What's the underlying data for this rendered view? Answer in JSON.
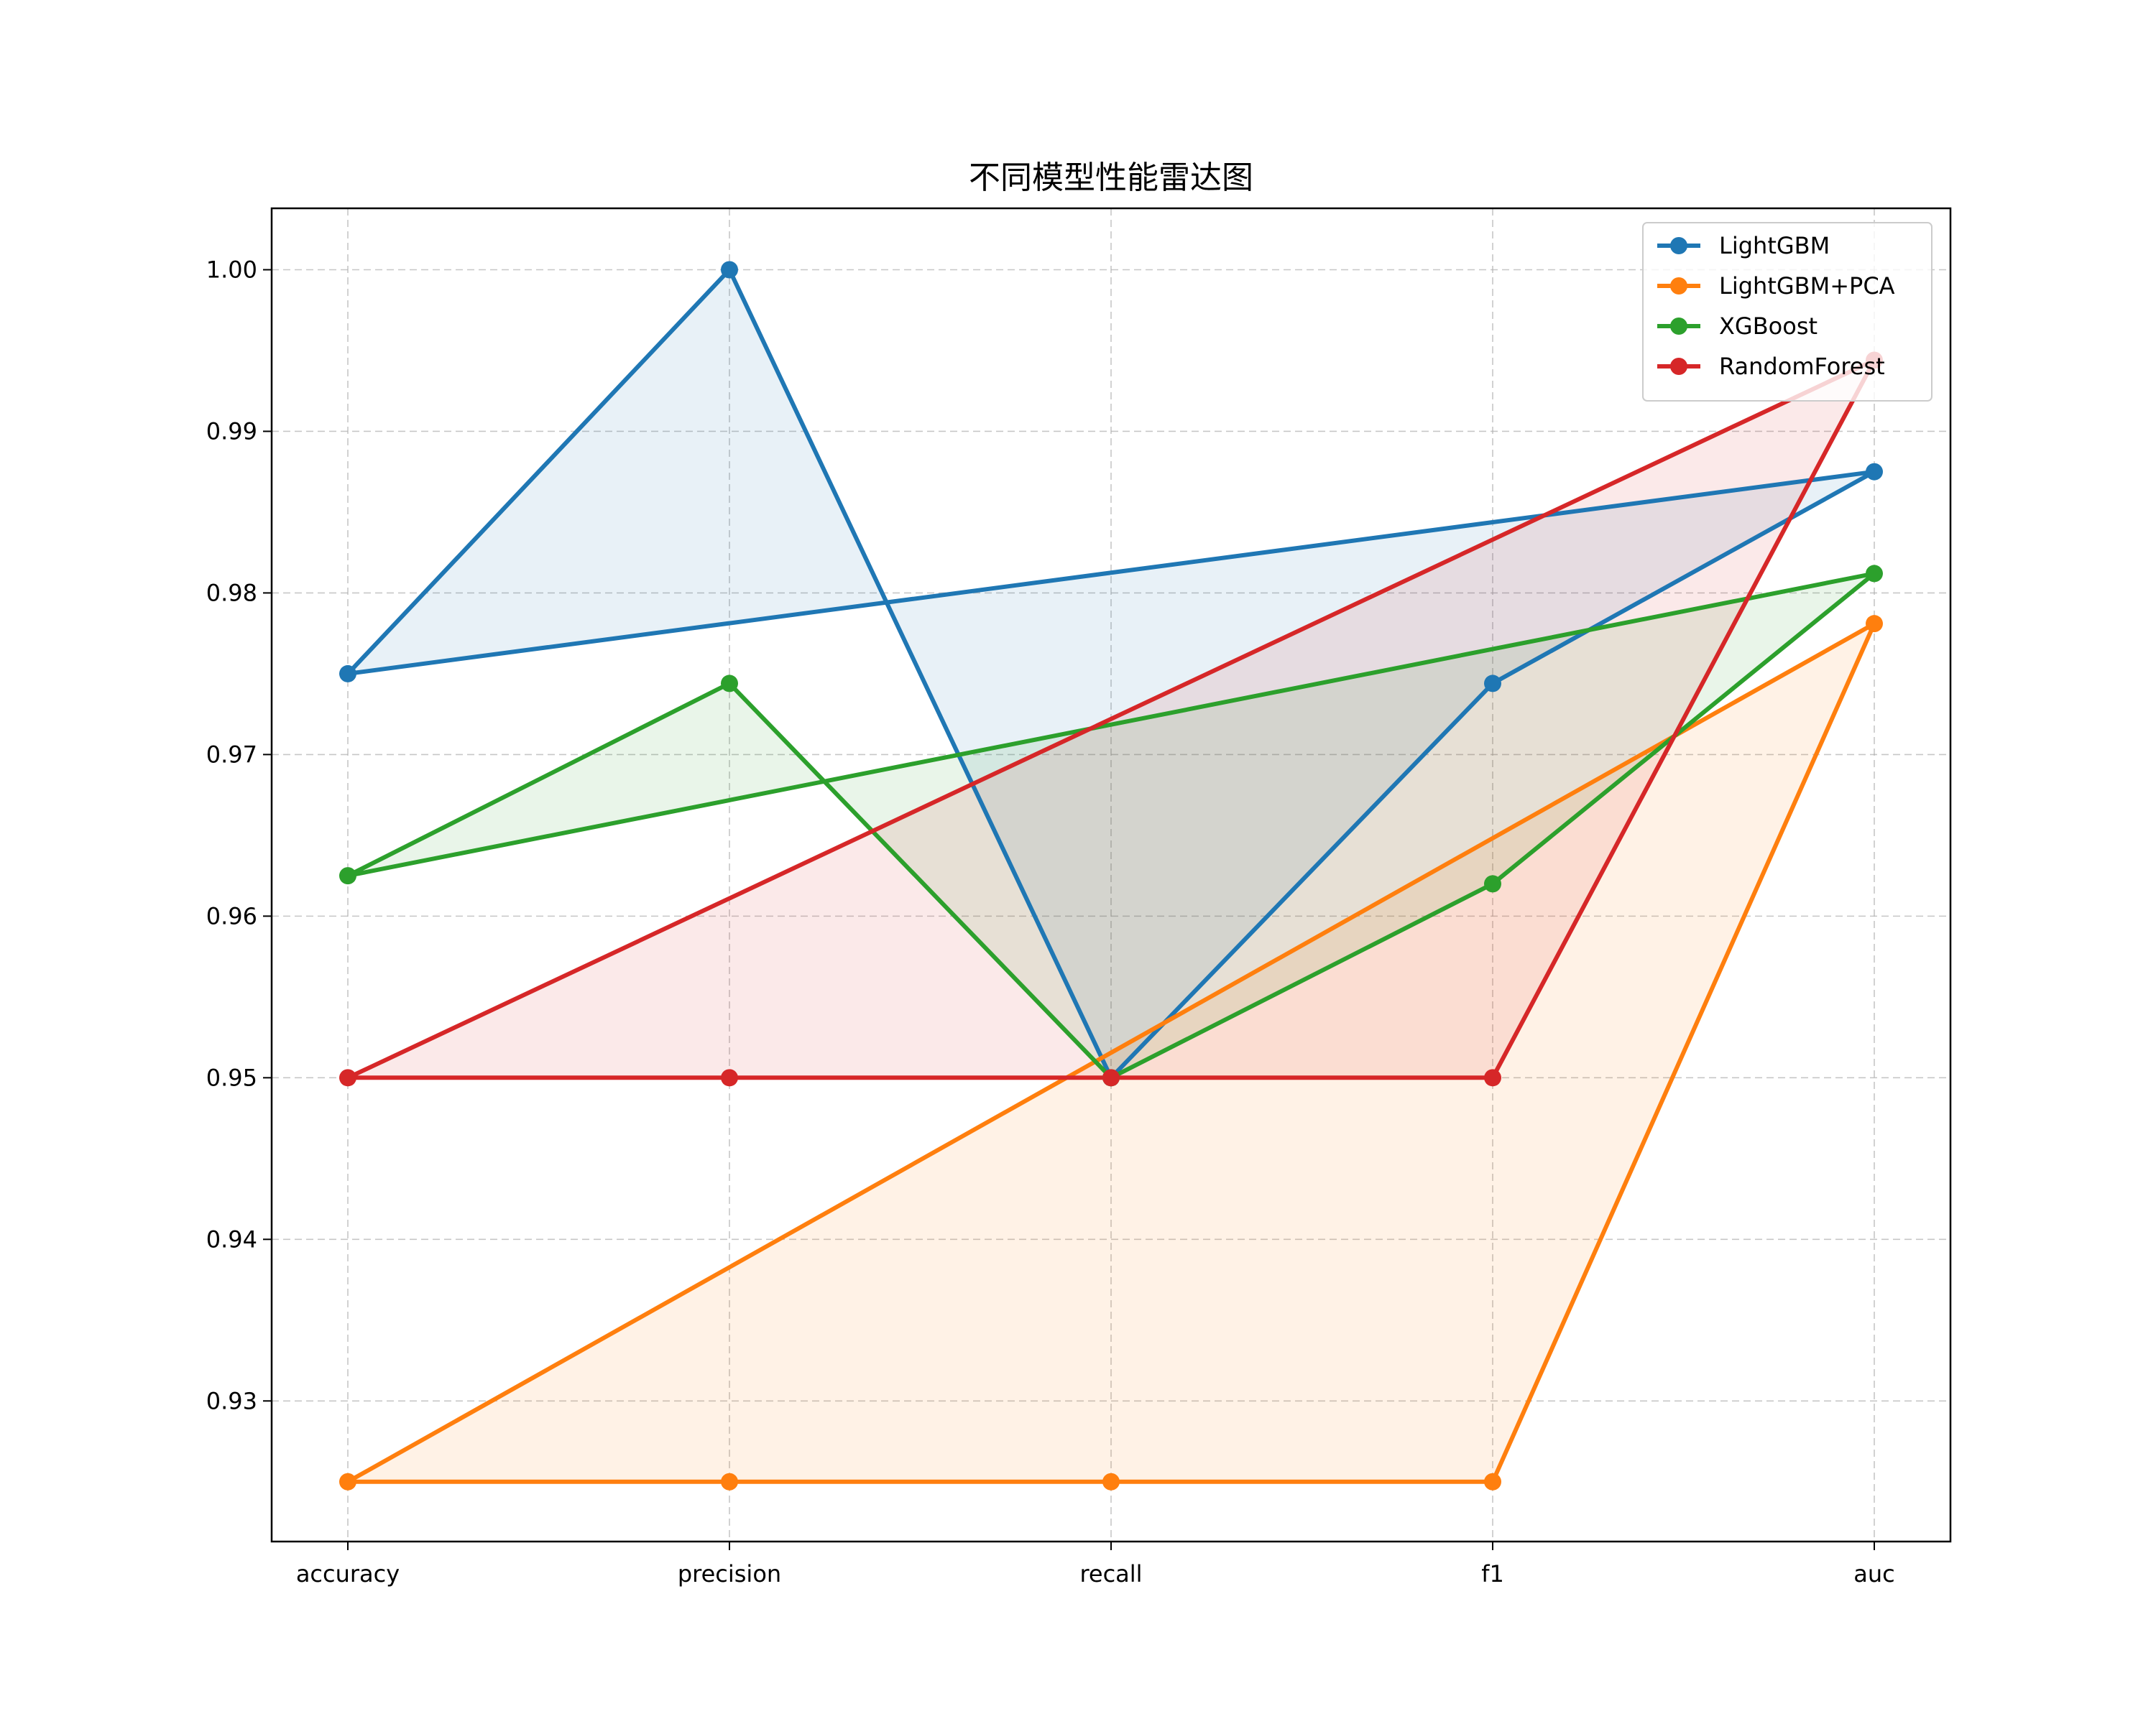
{
  "chart_data": {
    "type": "line",
    "title": "不同模型性能雷达图",
    "categories": [
      "accuracy",
      "precision",
      "recall",
      "f1",
      "auc"
    ],
    "xlabel": "",
    "ylabel": "",
    "ylim": [
      0.9213,
      1.0038
    ],
    "yticks": [
      0.93,
      0.94,
      0.95,
      0.96,
      0.97,
      0.98,
      0.99,
      1.0
    ],
    "ytick_labels": [
      "0.93",
      "0.94",
      "0.95",
      "0.96",
      "0.97",
      "0.98",
      "0.99",
      "1.00"
    ],
    "grid": true,
    "legend_position": "top-right",
    "closed_polygon": true,
    "filled": true,
    "series": [
      {
        "name": "LightGBM",
        "color": "#1f77b4",
        "values": [
          0.975,
          1.0,
          0.95,
          0.9744,
          0.9875
        ]
      },
      {
        "name": "LightGBM+PCA",
        "color": "#ff7f0e",
        "values": [
          0.925,
          0.925,
          0.925,
          0.925,
          0.9781
        ]
      },
      {
        "name": "XGBoost",
        "color": "#2ca02c",
        "values": [
          0.9625,
          0.9744,
          0.95,
          0.962,
          0.9812
        ]
      },
      {
        "name": "RandomForest",
        "color": "#d62728",
        "values": [
          0.95,
          0.95,
          0.95,
          0.95,
          0.9944
        ]
      }
    ]
  }
}
